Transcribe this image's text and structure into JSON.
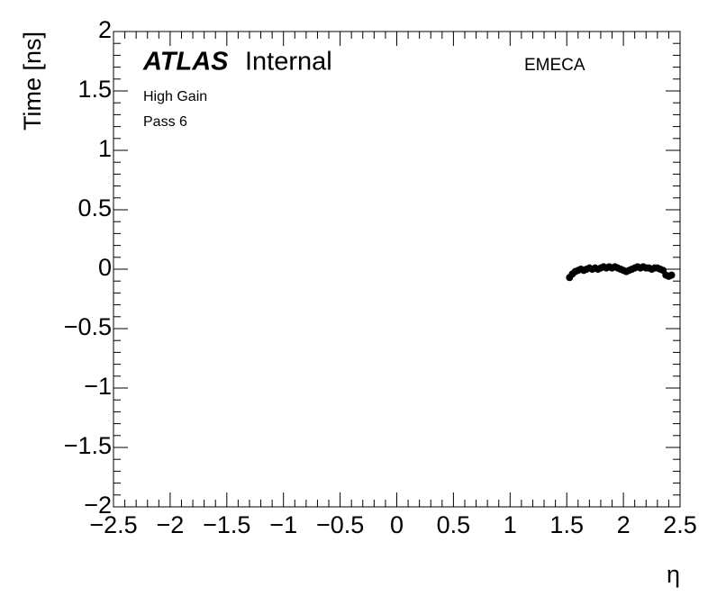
{
  "chart_data": {
    "type": "scatter",
    "title": "Internal",
    "experiment": "ATLAS",
    "region": "EMECA",
    "annotations": [
      "High Gain",
      "Pass 6"
    ],
    "x_label": "η",
    "y_label": "Time [ns]",
    "color": "#000000",
    "x": [
      1.525,
      1.55,
      1.575,
      1.6,
      1.625,
      1.65,
      1.675,
      1.7,
      1.725,
      1.75,
      1.775,
      1.8,
      1.825,
      1.85,
      1.875,
      1.9,
      1.925,
      1.95,
      1.975,
      2.0,
      2.025,
      2.05,
      2.075,
      2.1,
      2.125,
      2.15,
      2.175,
      2.2,
      2.225,
      2.25,
      2.275,
      2.3,
      2.325,
      2.35,
      2.375,
      2.4,
      2.425
    ],
    "values": [
      -0.07,
      -0.04,
      -0.02,
      -0.01,
      0.0,
      -0.01,
      0.0,
      0.01,
      0.0,
      0.01,
      0.0,
      0.01,
      0.02,
      0.01,
      0.02,
      0.01,
      0.02,
      0.01,
      0.0,
      -0.01,
      -0.02,
      -0.01,
      0.0,
      0.01,
      0.02,
      0.01,
      0.02,
      0.01,
      0.01,
      0.0,
      0.01,
      0.01,
      0.0,
      -0.01,
      -0.05,
      -0.06,
      -0.05
    ],
    "xlim": [
      -2.5,
      2.5
    ],
    "xticks": [
      {
        "value": -2.5,
        "label": "−2.5"
      },
      {
        "value": -2,
        "label": "−2"
      },
      {
        "value": -1.5,
        "label": "−1.5"
      },
      {
        "value": -1,
        "label": "−1"
      },
      {
        "value": -0.5,
        "label": "−0.5"
      },
      0,
      0.5,
      1,
      1.5,
      2,
      2.5
    ],
    "ylim": [
      -2,
      2
    ],
    "yticks": [
      {
        "value": -2,
        "label": "−2"
      },
      {
        "value": -1.5,
        "label": "−1.5"
      },
      {
        "value": -1,
        "label": "−1"
      },
      {
        "value": -0.5,
        "label": "−0.5"
      },
      0,
      0.5,
      1,
      1.5,
      2
    ],
    "grid": false
  }
}
